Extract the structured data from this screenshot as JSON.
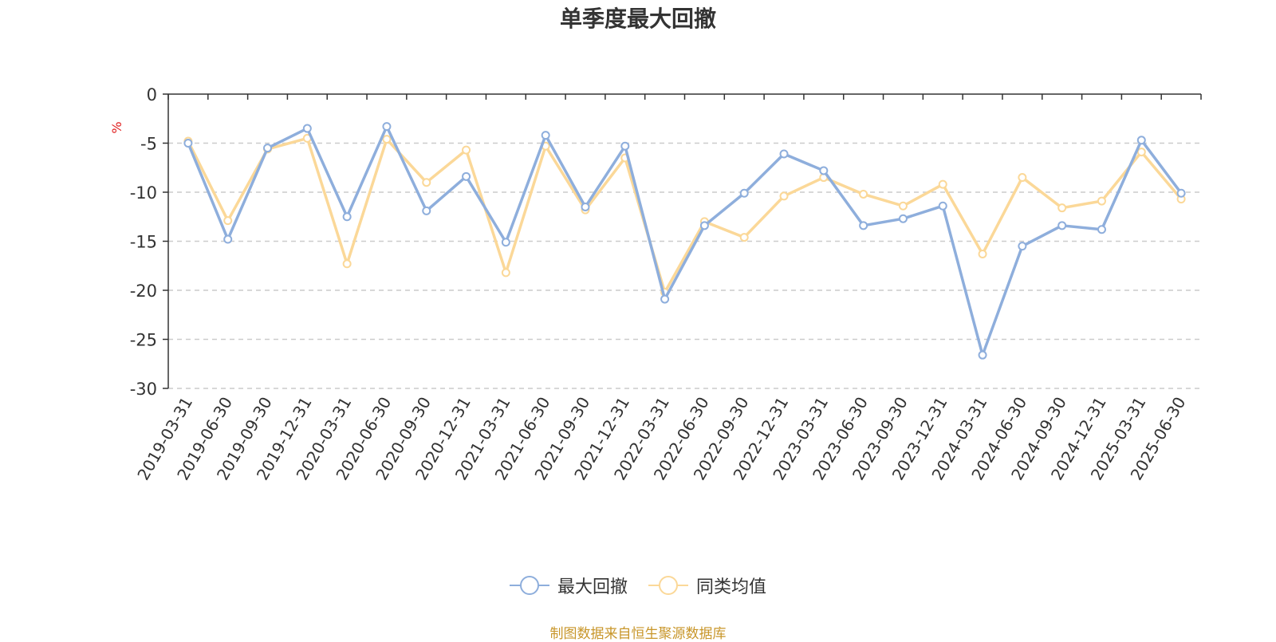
{
  "chart_data": {
    "type": "line",
    "title": "单季度最大回撤",
    "ylabel": "%",
    "ylim": [
      -30,
      0
    ],
    "yticks": [
      0,
      -5,
      -10,
      -15,
      -20,
      -25,
      -30
    ],
    "grid": true,
    "legend_position": "bottom",
    "categories": [
      "2019-03-31",
      "2019-06-30",
      "2019-09-30",
      "2019-12-31",
      "2020-03-31",
      "2020-06-30",
      "2020-09-30",
      "2020-12-31",
      "2021-03-31",
      "2021-06-30",
      "2021-09-30",
      "2021-12-31",
      "2022-03-31",
      "2022-06-30",
      "2022-09-30",
      "2022-12-31",
      "2023-03-31",
      "2023-06-30",
      "2023-09-30",
      "2023-12-31",
      "2024-03-31",
      "2024-06-30",
      "2024-09-30",
      "2024-12-31",
      "2025-03-31",
      "2025-06-30"
    ],
    "series": [
      {
        "name": "最大回撤",
        "color": "#8eaedc",
        "values": [
          -5.0,
          -14.8,
          -5.5,
          -3.5,
          -12.5,
          -3.3,
          -11.9,
          -8.4,
          -15.1,
          -4.2,
          -11.5,
          -5.3,
          -20.9,
          -13.4,
          -10.1,
          -6.1,
          -7.8,
          -13.4,
          -12.7,
          -11.4,
          -26.6,
          -15.5,
          -13.4,
          -13.8,
          -4.7,
          -10.1
        ]
      },
      {
        "name": "同类均值",
        "color": "#fbd898",
        "values": [
          -4.8,
          -12.9,
          -5.6,
          -4.5,
          -17.3,
          -4.6,
          -9.0,
          -5.7,
          -18.2,
          -5.3,
          -11.8,
          -6.5,
          -20.2,
          -13.0,
          -14.6,
          -10.4,
          -8.5,
          -10.2,
          -11.4,
          -9.2,
          -16.3,
          -8.5,
          -11.6,
          -10.9,
          -5.9,
          -10.7
        ]
      }
    ]
  },
  "footer": {
    "source": "制图数据来自恒生聚源数据库"
  }
}
